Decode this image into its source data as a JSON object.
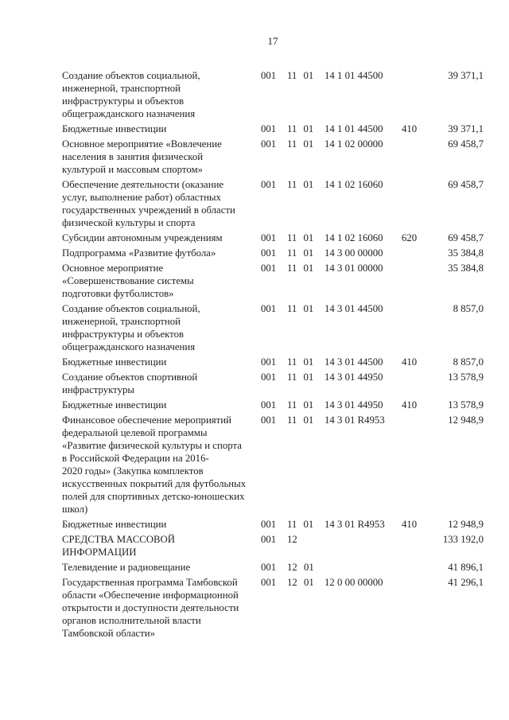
{
  "page": {
    "number": "17"
  },
  "table": {
    "rows": [
      {
        "name": "Создание объектов социальной,\nинженерной, транспортной\nинфраструктуры и объектов\nобщегражданского назначения",
        "code1": "001",
        "code2": "11 01",
        "code3": "14 1 01 44500",
        "code4": "",
        "amount": "39 371,1"
      },
      {
        "name": "Бюджетные инвестиции",
        "code1": "001",
        "code2": "11 01",
        "code3": "14 1 01 44500",
        "code4": "410",
        "amount": "39 371,1"
      },
      {
        "name": "Основное мероприятие «Вовлечение\nнаселения в занятия физической\nкультурой и массовым спортом»",
        "code1": "001",
        "code2": "11 01",
        "code3": "14 1 02 00000",
        "code4": "",
        "amount": "69 458,7"
      },
      {
        "name": "Обеспечение деятельности (оказание\nуслуг, выполнение работ) областных\nгосударственных учреждений в области\nфизической культуры и спорта",
        "code1": "001",
        "code2": "11 01",
        "code3": "14 1 02 16060",
        "code4": "",
        "amount": "69 458,7"
      },
      {
        "name": "Субсидии автономным учреждениям",
        "code1": "001",
        "code2": "11 01",
        "code3": "14 1 02 16060",
        "code4": "620",
        "amount": "69 458,7"
      },
      {
        "name": "Подпрограмма «Развитие футбола»",
        "code1": "001",
        "code2": "11 01",
        "code3": "14 3 00 00000",
        "code4": "",
        "amount": "35 384,8"
      },
      {
        "name": "Основное мероприятие\n«Совершенствование системы\nподготовки футболистов»",
        "code1": "001",
        "code2": "11 01",
        "code3": "14 3 01 00000",
        "code4": "",
        "amount": "35 384,8"
      },
      {
        "name": "Создание объектов социальной,\nинженерной, транспортной\nинфраструктуры и объектов\nобщегражданского назначения",
        "code1": "001",
        "code2": "11 01",
        "code3": "14 3 01 44500",
        "code4": "",
        "amount": "8 857,0"
      },
      {
        "name": "Бюджетные инвестиции",
        "code1": "001",
        "code2": "11 01",
        "code3": "14 3 01 44500",
        "code4": "410",
        "amount": "8 857,0"
      },
      {
        "name": "Создание объектов спортивной\nинфраструктуры",
        "code1": "001",
        "code2": "11 01",
        "code3": "14 3 01 44950",
        "code4": "",
        "amount": "13 578,9"
      },
      {
        "name": "Бюджетные инвестиции",
        "code1": "001",
        "code2": "11 01",
        "code3": "14 3 01 44950",
        "code4": "410",
        "amount": "13 578,9"
      },
      {
        "name": "Финансовое обеспечение мероприятий\nфедеральной целевой программы\n«Развитие физической культуры и спорта\nв Российской Федерации на 2016-\n2020 годы» (Закупка комплектов\nискусственных покрытий для футбольных\nполей для спортивных детско-юношеских\nшкол)",
        "code1": "001",
        "code2": "11 01",
        "code3": "14 3 01 R4953",
        "code4": "",
        "amount": "12 948,9"
      },
      {
        "name": "Бюджетные инвестиции",
        "code1": "001",
        "code2": "11 01",
        "code3": "14 3 01 R4953",
        "code4": "410",
        "amount": "12 948,9"
      },
      {
        "name": "СРЕДСТВА МАССОВОЙ\nИНФОРМАЦИИ",
        "code1": "001",
        "code2": "12",
        "code3": "",
        "code4": "",
        "amount": "133 192,0"
      },
      {
        "name": "Телевидение и радиовещание",
        "code1": "001",
        "code2": "12 01",
        "code3": "",
        "code4": "",
        "amount": "41 896,1"
      },
      {
        "name": "Государственная программа Тамбовской\nобласти «Обеспечение информационной\nоткрытости и доступности деятельности\nорганов исполнительной власти\nТамбовской области»",
        "code1": "001",
        "code2": "12 01",
        "code3": "12 0 00 00000",
        "code4": "",
        "amount": "41 296,1"
      }
    ]
  }
}
